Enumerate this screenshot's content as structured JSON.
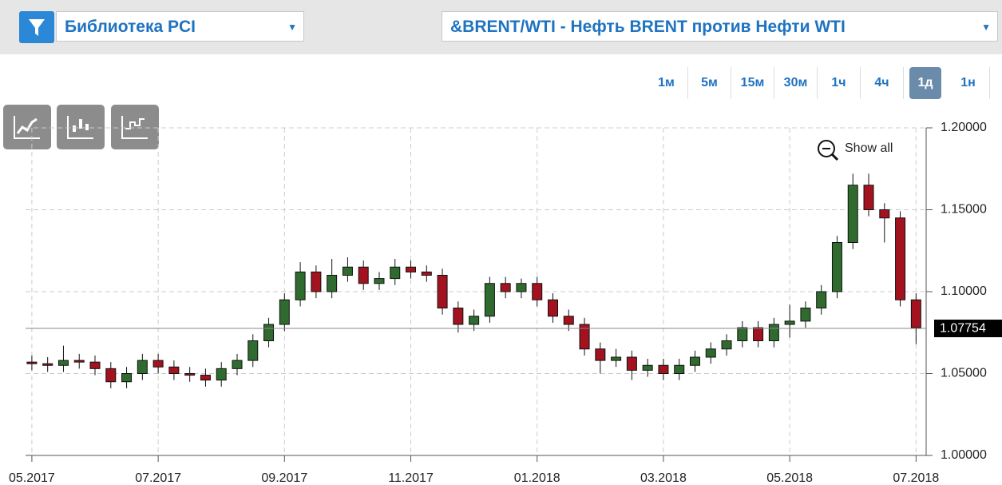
{
  "toolbar": {
    "library": "Библиотека PCI",
    "instrument": "&BRENT/WTI - Нефть BRENT против Нефти WTI",
    "timeframes": [
      "1м",
      "5м",
      "15м",
      "30м",
      "1ч",
      "4ч",
      "1д",
      "1н"
    ],
    "active": 6
  },
  "show_all": "Show all",
  "chart_data": {
    "type": "candlestick",
    "grid": true,
    "up_color": "#2f6b2f",
    "down_color": "#a3121f",
    "x": [
      0,
      0.25,
      0.5,
      0.75,
      1,
      1.25,
      1.5,
      1.75,
      2,
      2.25,
      2.5,
      2.75,
      3,
      3.25,
      3.5,
      3.75,
      4,
      4.25,
      4.5,
      4.75,
      5,
      5.25,
      5.5,
      5.75,
      6,
      6.25,
      6.5,
      6.75,
      7,
      7.25,
      7.5,
      7.75,
      8,
      8.25,
      8.5,
      8.75,
      9,
      9.25,
      9.5,
      9.75,
      10,
      10.25,
      10.5,
      10.75,
      11,
      11.25,
      11.5,
      11.75,
      12,
      12.25,
      12.5,
      12.75,
      13,
      13.25,
      13.5,
      13.75,
      14
    ],
    "open": [
      1.057,
      1.056,
      1.055,
      1.058,
      1.057,
      1.053,
      1.045,
      1.05,
      1.058,
      1.054,
      1.05,
      1.049,
      1.046,
      1.053,
      1.058,
      1.07,
      1.08,
      1.095,
      1.112,
      1.1,
      1.11,
      1.115,
      1.105,
      1.108,
      1.115,
      1.112,
      1.11,
      1.09,
      1.08,
      1.085,
      1.105,
      1.1,
      1.105,
      1.095,
      1.085,
      1.08,
      1.065,
      1.058,
      1.06,
      1.052,
      1.055,
      1.05,
      1.055,
      1.06,
      1.065,
      1.07,
      1.078,
      1.07,
      1.08,
      1.082,
      1.09,
      1.1,
      1.13,
      1.165,
      1.15,
      1.145,
      1.095
    ],
    "high": [
      1.061,
      1.06,
      1.067,
      1.062,
      1.061,
      1.057,
      1.054,
      1.062,
      1.062,
      1.058,
      1.054,
      1.053,
      1.057,
      1.062,
      1.074,
      1.084,
      1.099,
      1.118,
      1.116,
      1.12,
      1.121,
      1.119,
      1.112,
      1.12,
      1.119,
      1.116,
      1.114,
      1.094,
      1.089,
      1.109,
      1.109,
      1.108,
      1.109,
      1.099,
      1.089,
      1.084,
      1.069,
      1.065,
      1.064,
      1.059,
      1.059,
      1.059,
      1.064,
      1.069,
      1.074,
      1.082,
      1.082,
      1.084,
      1.092,
      1.094,
      1.104,
      1.134,
      1.172,
      1.172,
      1.154,
      1.149,
      1.099
    ],
    "low": [
      1.052,
      1.051,
      1.051,
      1.053,
      1.049,
      1.041,
      1.041,
      1.046,
      1.05,
      1.046,
      1.045,
      1.042,
      1.042,
      1.049,
      1.054,
      1.066,
      1.076,
      1.091,
      1.096,
      1.096,
      1.106,
      1.101,
      1.101,
      1.104,
      1.108,
      1.106,
      1.086,
      1.075,
      1.076,
      1.081,
      1.096,
      1.096,
      1.091,
      1.081,
      1.076,
      1.061,
      1.05,
      1.054,
      1.046,
      1.048,
      1.046,
      1.046,
      1.051,
      1.056,
      1.061,
      1.066,
      1.066,
      1.066,
      1.072,
      1.078,
      1.086,
      1.096,
      1.126,
      1.146,
      1.13,
      1.091,
      1.068
    ],
    "close": [
      1.056,
      1.055,
      1.058,
      1.057,
      1.053,
      1.045,
      1.05,
      1.058,
      1.054,
      1.05,
      1.049,
      1.046,
      1.053,
      1.058,
      1.07,
      1.08,
      1.095,
      1.112,
      1.1,
      1.11,
      1.115,
      1.105,
      1.108,
      1.115,
      1.112,
      1.11,
      1.09,
      1.08,
      1.085,
      1.105,
      1.1,
      1.105,
      1.095,
      1.085,
      1.08,
      1.065,
      1.058,
      1.06,
      1.052,
      1.055,
      1.05,
      1.055,
      1.06,
      1.065,
      1.07,
      1.078,
      1.07,
      1.08,
      1.082,
      1.09,
      1.1,
      1.13,
      1.165,
      1.15,
      1.145,
      1.095,
      1.078
    ],
    "xlim": [
      -0.1,
      14.16
    ],
    "xticks": [
      {
        "value": 0,
        "label": "05.2017"
      },
      {
        "value": 2,
        "label": "07.2017"
      },
      {
        "value": 4,
        "label": "09.2017"
      },
      {
        "value": 6,
        "label": "11.2017"
      },
      {
        "value": 8,
        "label": "01.2018"
      },
      {
        "value": 10,
        "label": "03.2018"
      },
      {
        "value": 12,
        "label": "05.2018"
      },
      {
        "value": 14,
        "label": "07.2018"
      }
    ],
    "ylim": [
      1.0,
      1.2
    ],
    "yticks": [
      {
        "value": 1.0,
        "label": "1.00000"
      },
      {
        "value": 1.05,
        "label": "1.05000"
      },
      {
        "value": 1.1,
        "label": "1.10000"
      },
      {
        "value": 1.15,
        "label": "1.15000"
      },
      {
        "value": 1.2,
        "label": "1.20000"
      }
    ],
    "last_price": 1.07754
  }
}
